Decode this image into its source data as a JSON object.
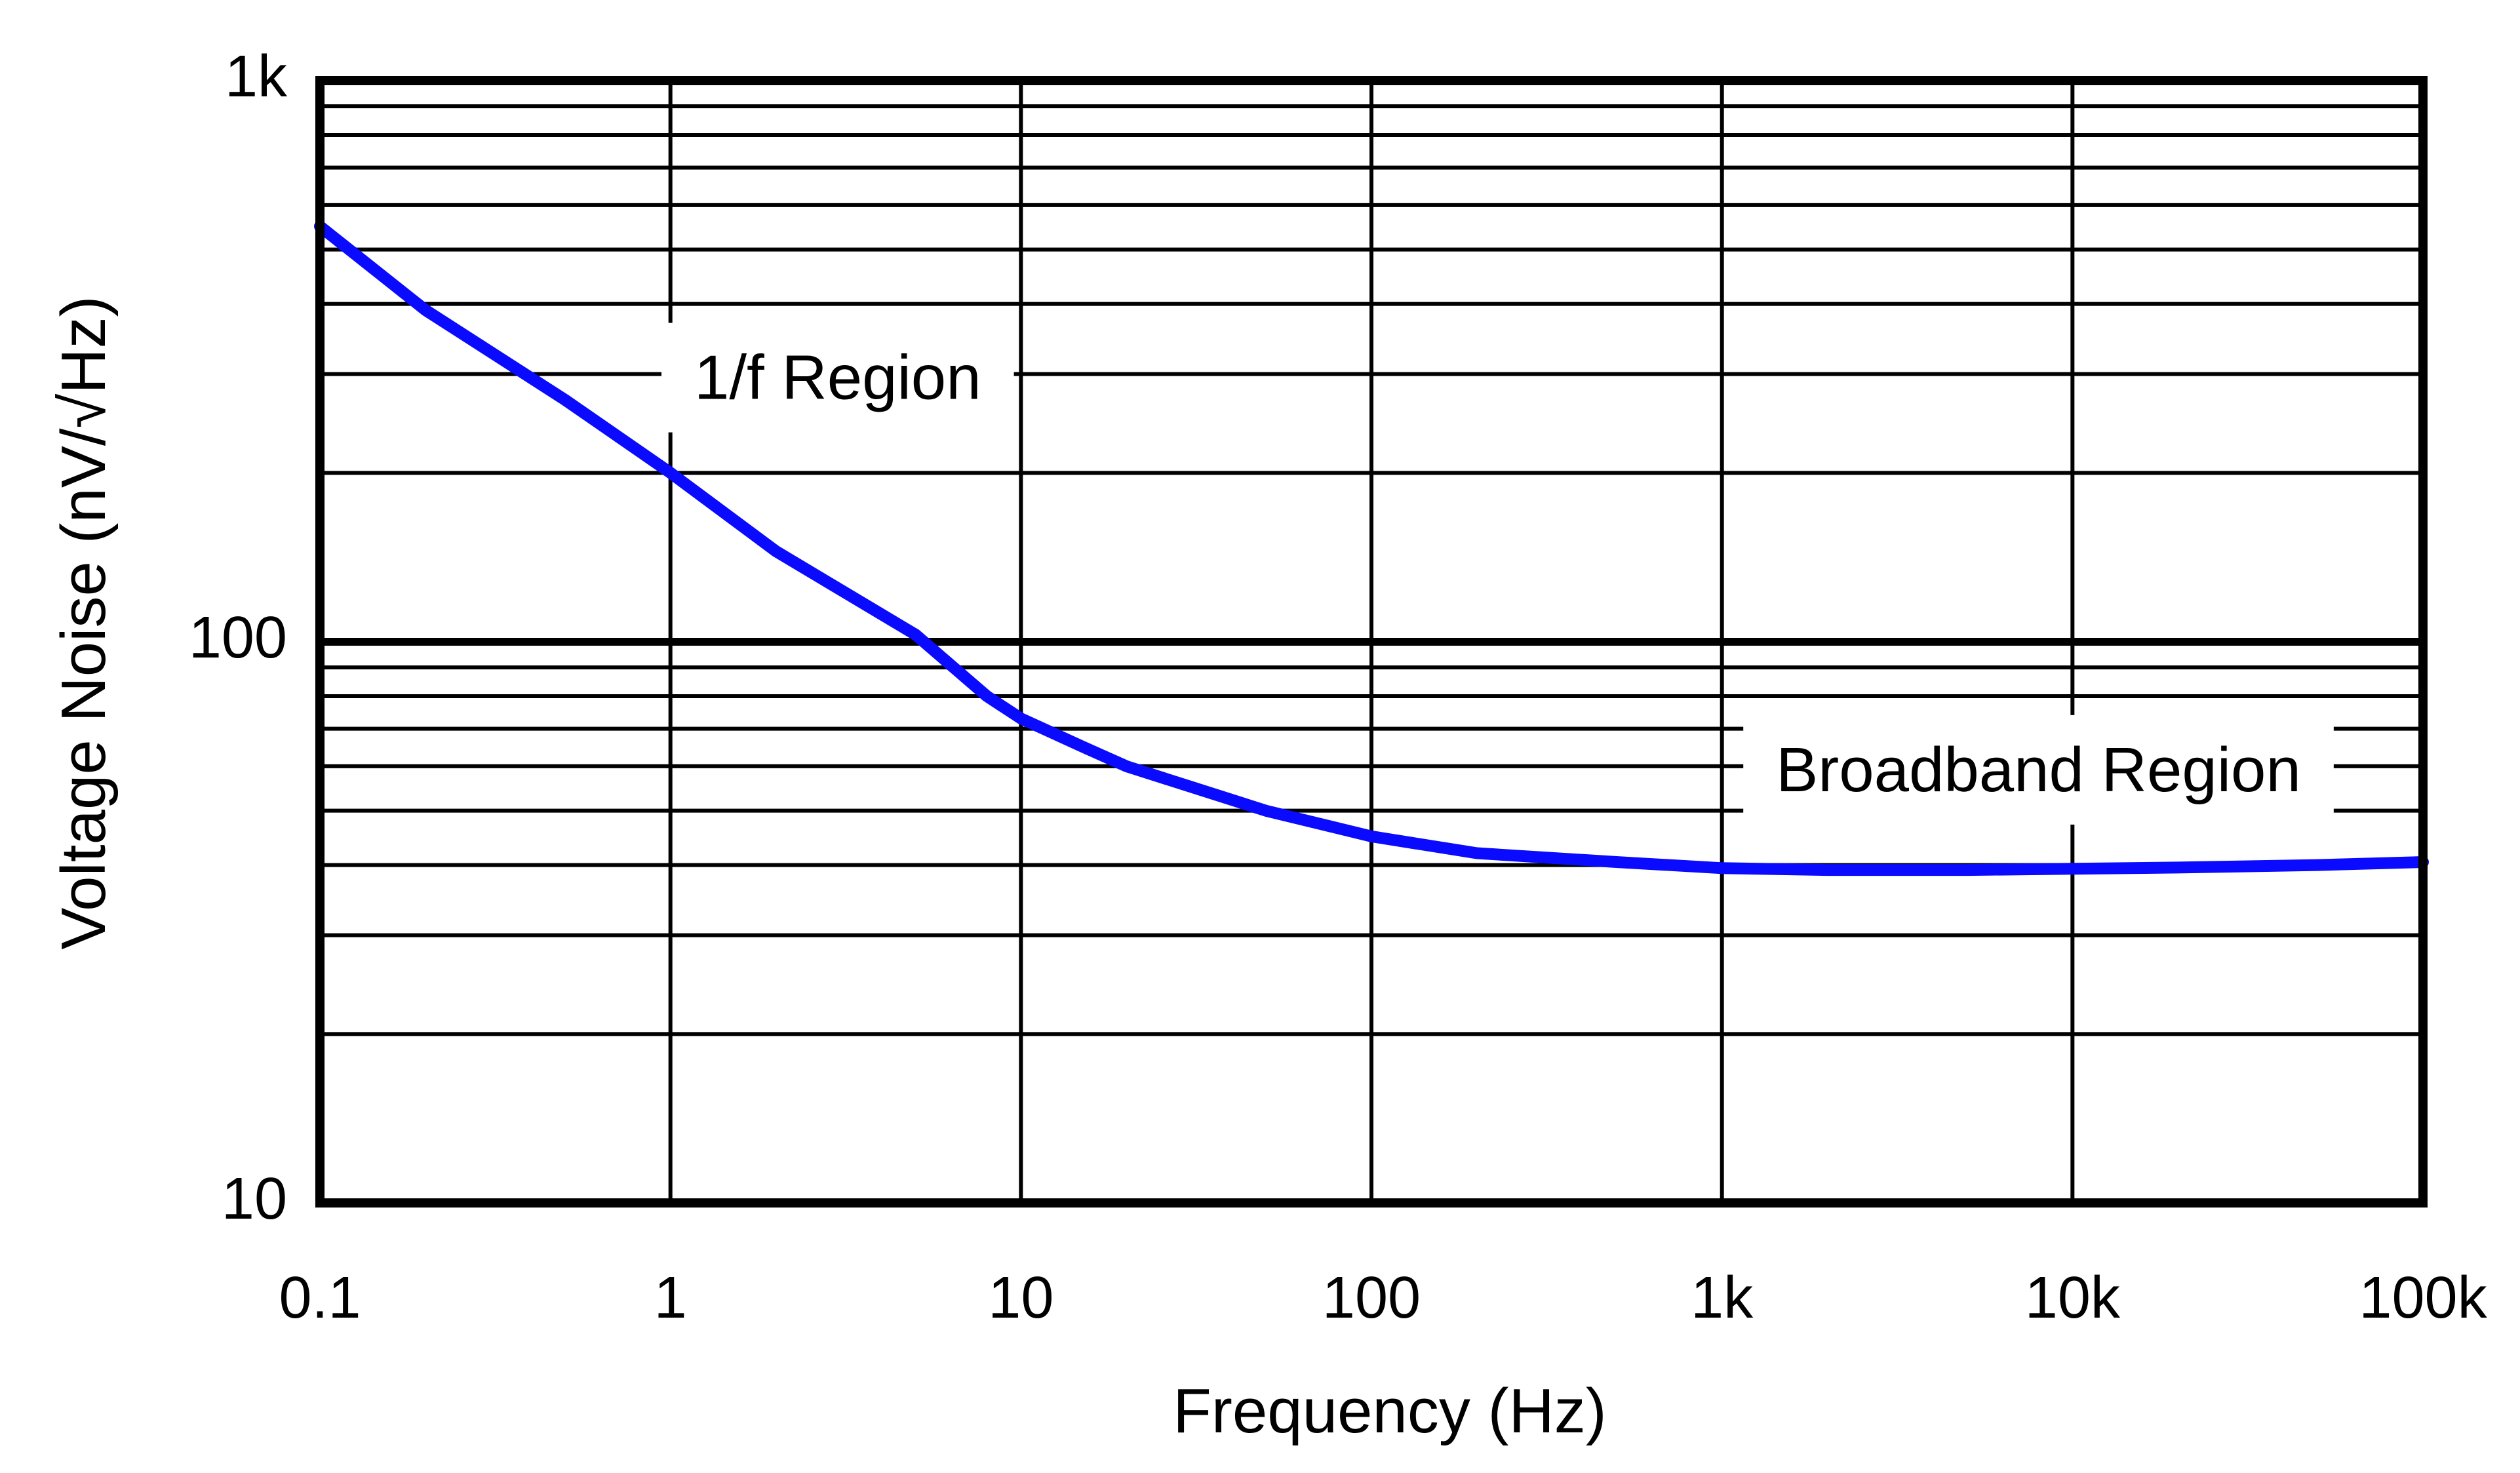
{
  "chart_data": {
    "type": "line",
    "xlabel": "Frequency (Hz)",
    "ylabel": "Voltage Noise (nV/√Hz)",
    "x_scale": "log",
    "y_scale": "log",
    "xlim": [
      0.1,
      100000
    ],
    "ylim": [
      10,
      1000
    ],
    "x_ticks": [
      0.1,
      1,
      10,
      100,
      1000,
      10000,
      100000
    ],
    "x_tick_labels": [
      "0.1",
      "1",
      "10",
      "100",
      "1k",
      "10k",
      "100k"
    ],
    "y_ticks": [
      10,
      100,
      1000
    ],
    "y_tick_labels": [
      "10",
      "100",
      "1k"
    ],
    "grid": true,
    "colors": {
      "line": "#0a0aff",
      "grid": "#000000"
    },
    "series": [
      {
        "x": [
          0.1,
          0.2,
          0.5,
          1,
          2,
          5,
          8,
          10,
          15,
          20,
          50,
          100,
          200,
          500,
          1000,
          2000,
          5000,
          10000,
          20000,
          50000,
          100000
        ],
        "y": [
          550,
          390,
          270,
          200,
          145,
          103,
          80,
          73,
          65,
          60,
          50,
          45,
          42,
          40.5,
          39.5,
          39.2,
          39.2,
          39.4,
          39.6,
          40,
          40.5
        ]
      }
    ],
    "annotations": [
      {
        "text": "1/f Region",
        "x": 3,
        "y": 290
      },
      {
        "text": "Broadband Region",
        "x": 8000,
        "y": 58
      }
    ]
  }
}
